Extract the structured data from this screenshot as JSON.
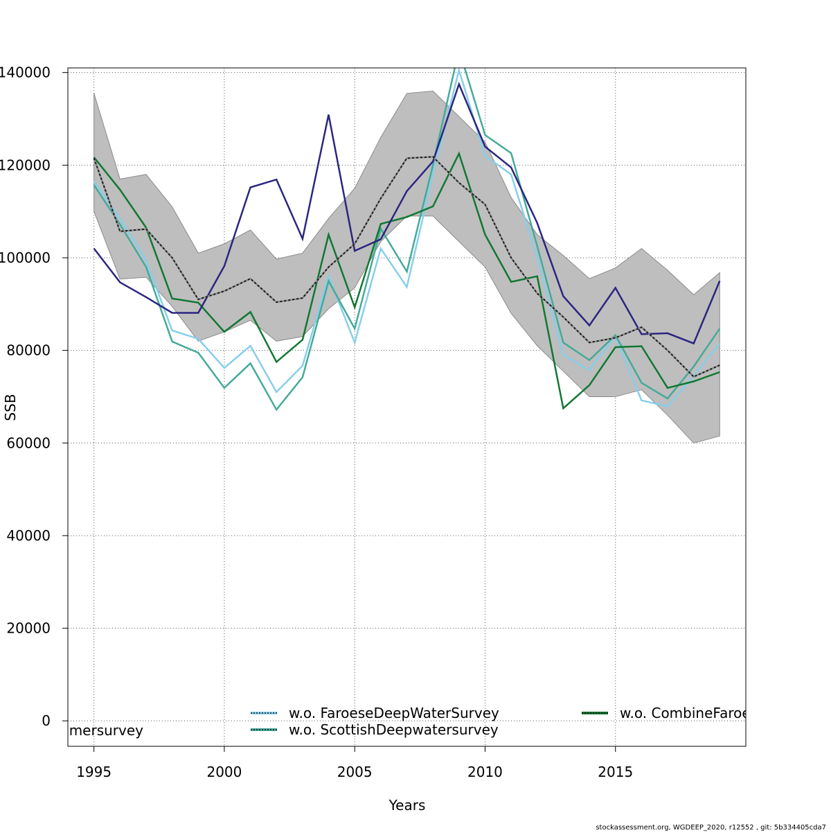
{
  "chart_data": {
    "type": "line",
    "title": "",
    "xlabel": "Years",
    "ylabel": "SSB",
    "xlim": [
      1994,
      2020
    ],
    "ylim": [
      -5500,
      141000
    ],
    "x_ticks": [
      1995,
      2000,
      2005,
      2010,
      2015
    ],
    "y_ticks": [
      0,
      20000,
      40000,
      60000,
      80000,
      100000,
      120000,
      140000
    ],
    "grid": true,
    "years": [
      1995,
      1996,
      1997,
      1998,
      1999,
      2000,
      2001,
      2002,
      2003,
      2004,
      2005,
      2006,
      2007,
      2008,
      2009,
      2010,
      2011,
      2012,
      2013,
      2014,
      2015,
      2016,
      2017,
      2018,
      2019
    ],
    "confidence_band": {
      "color": "#bebebe",
      "lower": [
        110000,
        95400,
        95800,
        89500,
        82000,
        84000,
        86500,
        82000,
        83000,
        89000,
        93500,
        103500,
        109000,
        109000,
        103500,
        98000,
        88000,
        81000,
        75500,
        70000,
        70000,
        71500,
        66000,
        60000,
        61500
      ],
      "upper": [
        135500,
        117000,
        118000,
        111000,
        101000,
        103000,
        106000,
        99700,
        101000,
        108500,
        115000,
        126000,
        135500,
        136000,
        130500,
        125000,
        113000,
        105000,
        100500,
        95500,
        97800,
        102000,
        97300,
        92000,
        96800
      ]
    },
    "series": [
      {
        "name": "",
        "color": "#1a1a1a",
        "dashed": true,
        "values": [
          121500,
          105700,
          106200,
          100000,
          91000,
          92800,
          95500,
          90400,
          91300,
          98000,
          103000,
          112800,
          121500,
          121800,
          116200,
          111500,
          100000,
          92300,
          87200,
          81700,
          82700,
          85000,
          80000,
          74300,
          76800
        ]
      },
      {
        "name": "",
        "color": "#2b2580",
        "dashed": false,
        "values": [
          102000,
          94700,
          91500,
          88100,
          88100,
          98200,
          115200,
          116900,
          104100,
          130900,
          101500,
          104000,
          114400,
          120800,
          137500,
          124000,
          119500,
          107500,
          91700,
          85400,
          93500,
          83500,
          83700,
          81500,
          95000
        ]
      },
      {
        "name": "w.o. FaroeseDeepWaterSurvey",
        "color": "#87ceeb",
        "dashed": false,
        "values": [
          116500,
          108500,
          99500,
          84300,
          82500,
          76200,
          81000,
          71000,
          76700,
          96000,
          81700,
          102000,
          93700,
          118000,
          140500,
          122000,
          118000,
          100000,
          79000,
          75800,
          83000,
          69200,
          67900,
          74500,
          81500
        ]
      },
      {
        "name": "w.o. ScottishDeepwatersurvey",
        "color": "#44aa99",
        "dashed": false,
        "values": [
          115700,
          107200,
          98000,
          81900,
          79500,
          71900,
          77200,
          67200,
          74200,
          95000,
          84700,
          106300,
          97000,
          120000,
          145000,
          126500,
          122600,
          102500,
          81700,
          77900,
          83300,
          73000,
          69600,
          76500,
          84700
        ]
      },
      {
        "name": "w.o. CombineFaroe",
        "color": "#117733",
        "dashed": false,
        "values": [
          121700,
          114700,
          106500,
          91200,
          90300,
          84000,
          88300,
          77500,
          82300,
          105000,
          89300,
          107300,
          108800,
          111100,
          122500,
          105000,
          94800,
          96000,
          67500,
          72500,
          80700,
          80900,
          71900,
          73300,
          75300
        ]
      }
    ],
    "legend": {
      "entries": [
        {
          "label": "w.o. FaroeseDeepWaterSurvey",
          "color": "#87ceeb",
          "line_color": "#1a1a1a",
          "dotted": true
        },
        {
          "label": "w.o. ScottishDeepwatersurvey",
          "color": "#44aa99",
          "line_color": "#1a1a1a",
          "dotted": true
        },
        {
          "label": "w.o. CombineFaroe",
          "color": "#117733",
          "line_color": "#1a1a1a",
          "dotted": true
        },
        {
          "label": "amersurvey",
          "color": "",
          "line_color": "",
          "dotted": false
        }
      ]
    }
  },
  "credit": "stockassessment.org, WGDEEP_2020, r12552 , git: 5b334405cda7"
}
